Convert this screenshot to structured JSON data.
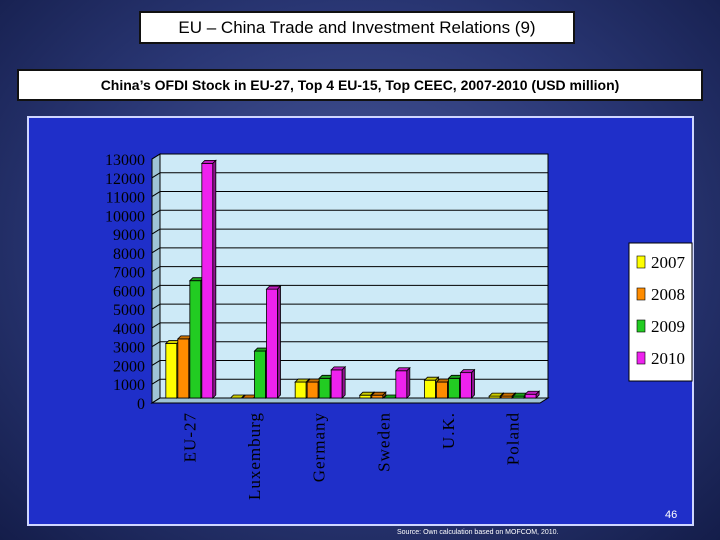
{
  "header": {
    "title": "EU – China Trade and Investment Relations (9)",
    "subtitle": "China’s OFDI Stock in EU-27, Top 4 EU-15, Top CEEC, 2007-2010 (USD million)"
  },
  "footer": {
    "page_number": "46",
    "source": "Source: Own calculation based on MOFCOM, 2010."
  },
  "colors": {
    "plot_background": "#cdeaf7",
    "panel_background": "#1f2fc9"
  },
  "chart_data": {
    "type": "bar",
    "categories": [
      "EU-27",
      "Luxemburg",
      "Germany",
      "Sweden",
      "U.K.",
      "Poland"
    ],
    "series": [
      {
        "name": "2007",
        "color": "#ffff00",
        "values": [
          2900,
          0,
          850,
          150,
          950,
          100
        ]
      },
      {
        "name": "2008",
        "color": "#ff8c00",
        "values": [
          3150,
          0,
          850,
          150,
          850,
          100
        ]
      },
      {
        "name": "2009",
        "color": "#22cc22",
        "values": [
          6250,
          2500,
          1050,
          0,
          1050,
          100
        ]
      },
      {
        "name": "2010",
        "color": "#ee22ee",
        "values": [
          12500,
          5800,
          1500,
          1450,
          1350,
          200
        ]
      }
    ],
    "yticks": [
      0,
      1000,
      2000,
      3000,
      4000,
      5000,
      6000,
      7000,
      8000,
      9000,
      10000,
      11000,
      12000,
      13000
    ],
    "ylim": [
      0,
      13000
    ],
    "grid": true,
    "legend_position": "right"
  }
}
